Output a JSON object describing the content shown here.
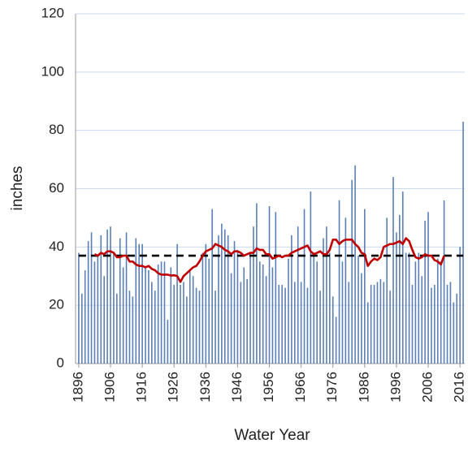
{
  "chart_data": {
    "type": "bar",
    "x_label": "Water Year",
    "y_label": "inches",
    "x": [
      1896,
      1897,
      1898,
      1899,
      1900,
      1901,
      1902,
      1903,
      1904,
      1905,
      1906,
      1907,
      1908,
      1909,
      1910,
      1911,
      1912,
      1913,
      1914,
      1915,
      1916,
      1917,
      1918,
      1919,
      1920,
      1921,
      1922,
      1923,
      1924,
      1925,
      1926,
      1927,
      1928,
      1929,
      1930,
      1931,
      1932,
      1933,
      1934,
      1935,
      1936,
      1937,
      1938,
      1939,
      1940,
      1941,
      1942,
      1943,
      1944,
      1945,
      1946,
      1947,
      1948,
      1949,
      1950,
      1951,
      1952,
      1953,
      1954,
      1955,
      1956,
      1957,
      1958,
      1959,
      1960,
      1961,
      1962,
      1963,
      1964,
      1965,
      1966,
      1967,
      1968,
      1969,
      1970,
      1971,
      1972,
      1973,
      1974,
      1975,
      1976,
      1977,
      1978,
      1979,
      1980,
      1981,
      1982,
      1983,
      1984,
      1985,
      1986,
      1987,
      1988,
      1989,
      1990,
      1991,
      1992,
      1993,
      1994,
      1995,
      1996,
      1997,
      1998,
      1999,
      2000,
      2001,
      2002,
      2003,
      2004,
      2005,
      2006,
      2007,
      2008,
      2009,
      2010,
      2011,
      2012,
      2013,
      2014,
      2015,
      2016,
      2017
    ],
    "values": [
      38,
      24,
      32,
      42,
      45,
      35,
      37,
      44,
      30,
      46,
      47,
      38,
      24,
      43,
      33,
      45,
      25,
      23,
      43,
      41,
      41,
      33,
      32,
      28,
      25,
      34,
      35,
      35,
      15,
      33,
      27,
      41,
      27,
      28,
      23,
      32,
      30,
      26,
      25,
      38,
      41,
      36,
      53,
      25,
      44,
      48,
      46,
      44,
      31,
      42,
      39,
      28,
      33,
      29,
      38,
      47,
      55,
      35,
      34,
      30,
      54,
      33,
      52,
      27,
      27,
      26,
      36,
      44,
      28,
      47,
      28,
      53,
      26,
      59,
      38,
      35,
      25,
      43,
      47,
      38,
      23,
      16,
      56,
      35,
      50,
      28,
      63,
      68,
      37,
      31,
      53,
      21,
      27,
      27,
      28,
      29,
      28,
      50,
      25,
      64,
      45,
      51,
      59,
      38,
      38,
      27,
      35,
      38,
      30,
      49,
      52,
      26,
      27,
      36,
      35,
      56,
      27,
      28,
      21,
      24,
      40,
      83
    ],
    "color": "#5b7fb5",
    "line": {
      "type": "line",
      "color": "#c00000",
      "values": [
        null,
        null,
        null,
        null,
        null,
        37.5,
        37,
        38,
        37.5,
        38.5,
        38.5,
        38,
        36.5,
        36.5,
        37,
        37,
        35,
        35,
        34,
        33.5,
        33.5,
        33,
        33.5,
        32.5,
        32,
        31,
        30.5,
        30.5,
        30.5,
        30.2,
        30.3,
        30,
        28,
        30,
        31,
        32,
        33,
        33.5,
        35,
        37,
        38.5,
        39,
        39.5,
        41,
        40.5,
        40,
        39,
        38.5,
        37.5,
        38.5,
        38.5,
        38,
        37,
        37.5,
        38,
        38,
        39.5,
        39,
        39,
        37.5,
        37.5,
        36,
        36.5,
        37,
        36.5,
        37,
        37,
        38,
        38.5,
        39,
        39.5,
        40,
        40.5,
        38.5,
        37.5,
        38,
        38.5,
        37.5,
        37.5,
        39,
        42.5,
        42.5,
        41,
        42,
        42.5,
        42.5,
        42.5,
        41,
        40,
        38,
        37.5,
        33.5,
        35,
        36,
        35.5,
        36.5,
        40,
        40.5,
        41,
        41,
        41.5,
        42,
        41,
        43,
        42,
        39,
        36.5,
        36,
        36.5,
        37.5,
        37,
        37,
        35.5,
        35,
        34,
        37,
        null,
        null,
        null,
        null,
        null,
        null
      ]
    },
    "mean_line": {
      "value": 37,
      "color": "#000000"
    },
    "xlim": [
      1895,
      2017.5
    ],
    "ylim": [
      0,
      120
    ],
    "xticks": [
      1896,
      1906,
      1916,
      1926,
      1936,
      1946,
      1956,
      1966,
      1976,
      1986,
      1996,
      2006,
      2016
    ],
    "yticks": [
      0,
      20,
      40,
      60,
      80,
      100,
      120
    ],
    "grid": true
  }
}
